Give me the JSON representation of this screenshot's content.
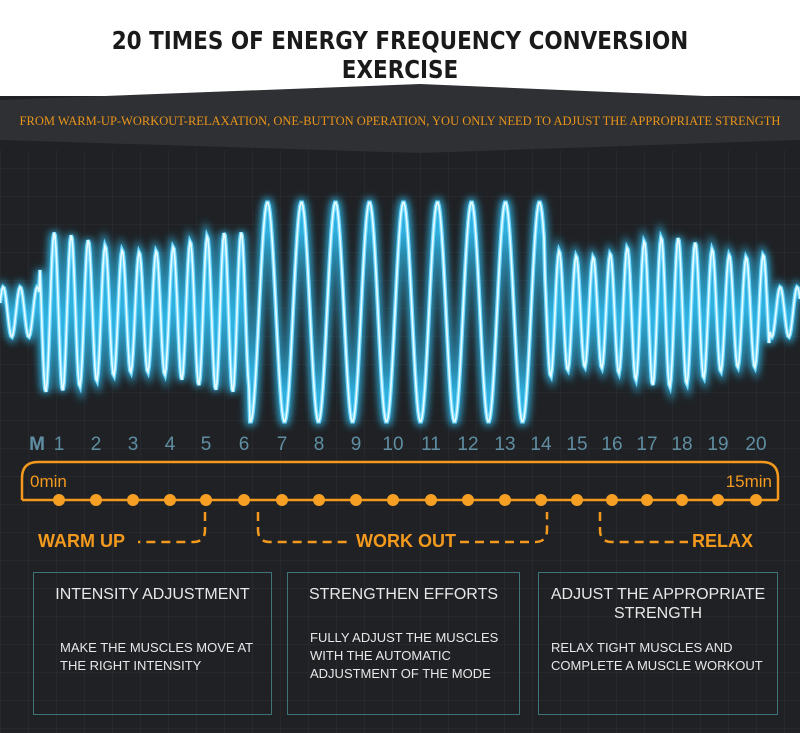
{
  "header": {
    "title": "20 TIMES OF ENERGY FREQUENCY CONVERSION EXERCISE",
    "subtitle": "FROM WARM-UP-WORKOUT-RELAXATION, ONE-BUTTON OPERATION, YOU ONLY NEED TO ADJUST THE APPROPRIATE STRENGTH"
  },
  "modes": [
    "M",
    "1",
    "2",
    "3",
    "4",
    "5",
    "6",
    "7",
    "8",
    "9",
    "10",
    "11",
    "12",
    "13",
    "14",
    "15",
    "16",
    "17",
    "18",
    "19",
    "20"
  ],
  "timeline": {
    "start": "0min",
    "end": "15min"
  },
  "phases": [
    "WARM UP",
    "WORK OUT",
    "RELAX"
  ],
  "cards": [
    {
      "title": "INTENSITY ADJUSTMENT",
      "description": "MAKE THE MUSCLES MOVE AT THE RIGHT INTENSITY"
    },
    {
      "title": "STRENGTHEN EFFORTS",
      "description": "FULLY ADJUST THE MUSCLES WITH THE AUTOMATIC ADJUSTMENT OF THE MODE"
    },
    {
      "title": "ADJUST THE APPROPRIATE STRENGTH",
      "description": "RELAX TIGHT MUSCLES AND COMPLETE A MUSCLE WORKOUT"
    }
  ]
}
